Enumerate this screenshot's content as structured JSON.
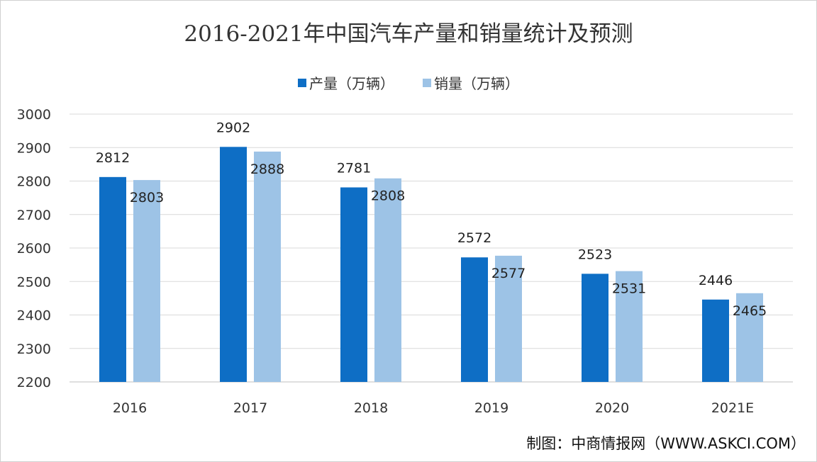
{
  "chart_data": {
    "type": "bar",
    "title": "2016-2021年中国汽车产量和销量统计及预测",
    "categories": [
      "2016",
      "2017",
      "2018",
      "2019",
      "2020",
      "2021E"
    ],
    "series": [
      {
        "name": "产量（万辆）",
        "color": "#0E6EC5",
        "values": [
          2812,
          2902,
          2781,
          2572,
          2523,
          2446
        ]
      },
      {
        "name": "销量（万辆）",
        "color": "#9DC3E6",
        "values": [
          2803,
          2888,
          2808,
          2577,
          2531,
          2465
        ]
      }
    ],
    "xlabel": "",
    "ylabel": "",
    "ylim": [
      2200,
      3000
    ],
    "yticks": [
      2200,
      2300,
      2400,
      2500,
      2600,
      2700,
      2800,
      2900,
      3000
    ],
    "grid": true,
    "legend": "top-center",
    "credit": "制图：中商情报网（WWW.ASKCI.COM）"
  }
}
